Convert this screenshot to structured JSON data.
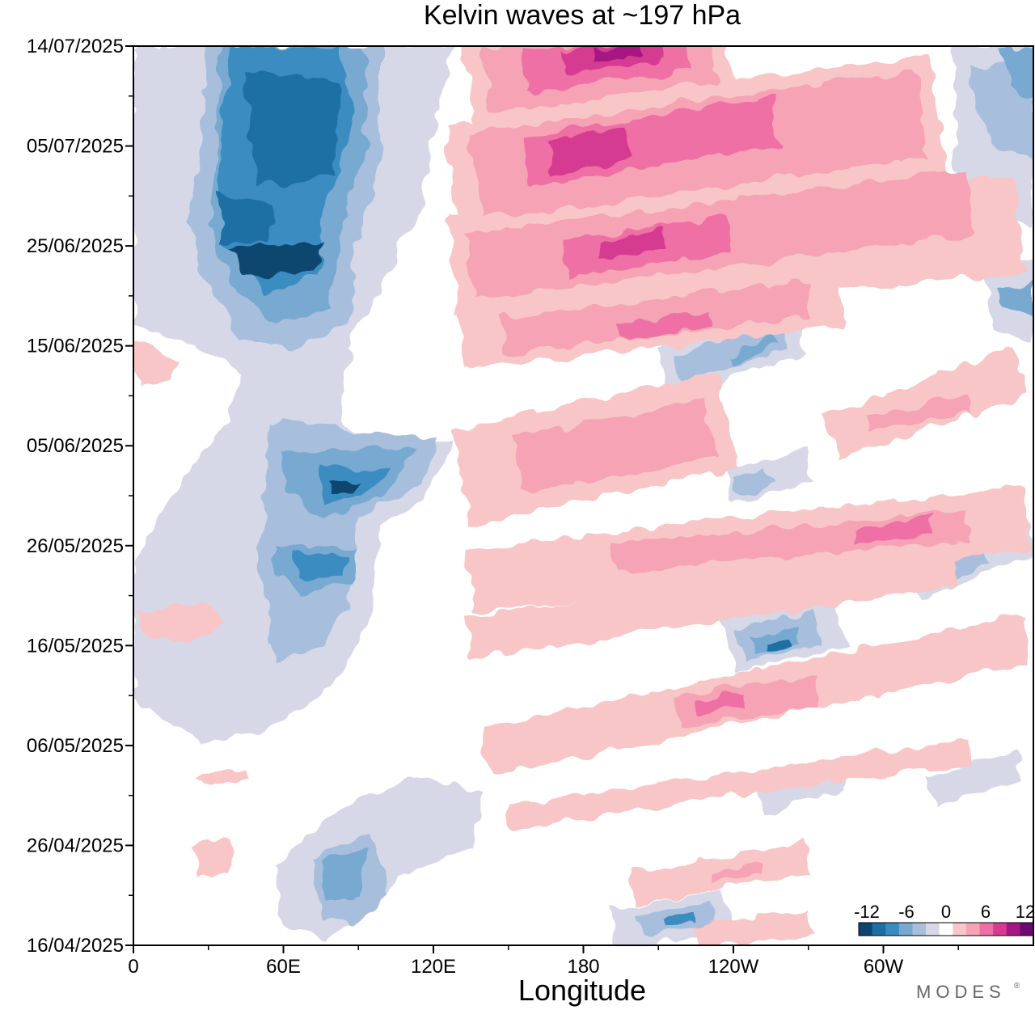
{
  "chart_data": {
    "type": "heatmap",
    "title": "Kelvin waves at ~197 hPa",
    "xlabel": "Longitude",
    "ylabel": "",
    "x_ticks": [
      "0",
      "60E",
      "120E",
      "180",
      "120W",
      "60W"
    ],
    "x_range_deg": [
      0,
      360
    ],
    "y_ticks": [
      "14/07/2025",
      "05/07/2025",
      "25/06/2025",
      "15/06/2025",
      "05/06/2025",
      "26/05/2025",
      "16/05/2025",
      "06/05/2025",
      "26/04/2025",
      "16/04/2025"
    ],
    "y_range_days_from_start": [
      0,
      89
    ],
    "colorbar": {
      "labels": [
        "-12",
        "-6",
        "0",
        "6",
        "12"
      ],
      "levels": [
        -12,
        -10,
        -8,
        -6,
        -4,
        -2,
        2,
        4,
        6,
        8,
        10,
        12
      ],
      "colors": [
        "#0c4670",
        "#1c6fa3",
        "#3a8cc0",
        "#78a9d0",
        "#a7bfdc",
        "#d6d8e8",
        "#ffffff",
        "#f8c6c6",
        "#f5a3b5",
        "#ee6fa4",
        "#d63a92",
        "#a81584",
        "#6d0a72"
      ]
    },
    "features": [
      {
        "kind": "negative-anomaly",
        "max_level": -12,
        "lon_range": [
          30,
          95
        ],
        "date_range": [
          "18/06/2025",
          "14/07/2025"
        ]
      },
      {
        "kind": "negative-anomaly",
        "max_level": -10,
        "lon_range": [
          70,
          120
        ],
        "date_range": [
          "26/05/2025",
          "06/06/2025"
        ]
      },
      {
        "kind": "negative-anomaly",
        "max_level": -8,
        "lon_range": [
          60,
          100
        ],
        "date_range": [
          "18/04/2025",
          "26/04/2025"
        ]
      },
      {
        "kind": "positive-anomaly",
        "max_level": 12,
        "lon_range": [
          140,
          240
        ],
        "date_range": [
          "03/07/2025",
          "14/07/2025"
        ]
      },
      {
        "kind": "positive-anomaly",
        "max_level": 10,
        "lon_range": [
          130,
          300
        ],
        "date_range": [
          "18/06/2025",
          "03/07/2025"
        ]
      },
      {
        "kind": "positive-anomaly",
        "max_level": 8,
        "lon_range": [
          130,
          310
        ],
        "date_range": [
          "15/06/2025",
          "22/06/2025"
        ]
      },
      {
        "kind": "positive-anomaly",
        "max_level": 6,
        "lon_range": [
          125,
          320
        ],
        "date_range": [
          "28/05/2025",
          "06/06/2025"
        ]
      },
      {
        "kind": "negative-anomaly",
        "max_level": -10,
        "lon_range": [
          240,
          290
        ],
        "date_range": [
          "14/05/2025",
          "17/05/2025"
        ]
      },
      {
        "kind": "positive-anomaly",
        "max_level": 8,
        "lon_range": [
          140,
          290
        ],
        "date_range": [
          "06/05/2025",
          "14/05/2025"
        ]
      },
      {
        "kind": "negative-anomaly",
        "max_level": -8,
        "lon_range": [
          195,
          245
        ],
        "date_range": [
          "16/04/2025",
          "19/04/2025"
        ]
      }
    ]
  },
  "branding": {
    "text": "MODES",
    "mark": "®"
  }
}
